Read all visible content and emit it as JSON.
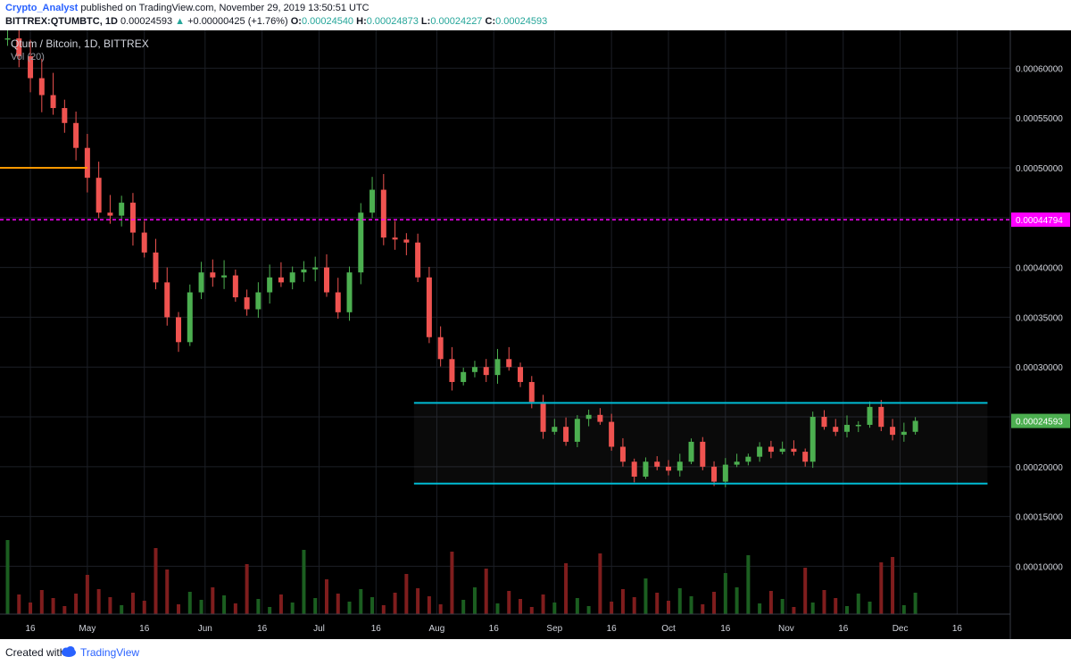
{
  "header": {
    "author": "Crypto_Analyst",
    "published_text": "published on TradingView.com, November 29, 2019 13:50:51 UTC",
    "symbol": "BITTREX:QTUMBTC, 1D",
    "last": "0.00024593",
    "arrow": "▲",
    "change": "+0.00000425 (+1.76%)",
    "o_label": "O:",
    "o_value": "0.00024540",
    "h_label": "H:",
    "h_value": "0.00024873",
    "l_label": "L:",
    "l_value": "0.00024227",
    "c_label": "C:",
    "c_value": "0.00024593"
  },
  "footer": {
    "created_with": "Created with",
    "brand": "TradingView",
    "logo_icon": "tradingview-logo-icon"
  },
  "colors": {
    "background": "#000000",
    "up": "#4caf50",
    "down": "#ef5350",
    "horizontal_line": "#ff9800",
    "dashed_line": "#ff00ff",
    "channel": "#00bcd4",
    "axis_text": "#d1d4dc",
    "price_badge": "#4caf50",
    "level_badge": "#ff00ff"
  },
  "chart_data": {
    "type": "candlestick",
    "title": "Qtum / Bitcoin, 1D, BITTREX",
    "indicator_label": "Vol (20)",
    "y_axis": {
      "ticks": [
        "0.00060000",
        "0.00055000",
        "0.00050000",
        "0.00045000",
        "0.00040000",
        "0.00035000",
        "0.00030000",
        "0.00025000",
        "0.00020000",
        "0.00015000",
        "0.00010000"
      ],
      "ylim": [
        5.2e-05,
        0.000638
      ]
    },
    "x_axis": {
      "ticks": [
        "16",
        "May",
        "16",
        "Jun",
        "16",
        "Jul",
        "16",
        "Aug",
        "16",
        "Sep",
        "16",
        "Oct",
        "16",
        "Nov",
        "16",
        "Dec",
        "16"
      ],
      "tick_dates": [
        "2019-04-16",
        "2019-05-01",
        "2019-05-16",
        "2019-06-01",
        "2019-06-16",
        "2019-07-01",
        "2019-07-16",
        "2019-08-01",
        "2019-08-16",
        "2019-09-01",
        "2019-09-16",
        "2019-10-01",
        "2019-10-16",
        "2019-11-01",
        "2019-11-16",
        "2019-12-01",
        "2019-12-16"
      ],
      "range": [
        "2019-04-08",
        "2019-12-30"
      ]
    },
    "price_labels": [
      {
        "value": "0.00044794",
        "kind": "level"
      },
      {
        "value": "0.00024593",
        "kind": "last"
      }
    ],
    "drawings": {
      "horizontal_segment": {
        "price": 0.0005,
        "from": "2019-04-08",
        "to": "2019-05-01"
      },
      "dashed_level": {
        "price": 0.00044794
      },
      "channel": {
        "upper": 0.000264,
        "lower": 0.000183,
        "from": "2019-07-26",
        "to": "2019-12-24"
      }
    },
    "candles": [
      {
        "date": "2019-04-10",
        "close": 0.00063
      },
      {
        "date": "2019-04-13",
        "close": 0.000612
      },
      {
        "date": "2019-04-16",
        "close": 0.00059
      },
      {
        "date": "2019-04-19",
        "close": 0.000573
      },
      {
        "date": "2019-04-22",
        "close": 0.00056
      },
      {
        "date": "2019-04-25",
        "close": 0.000545
      },
      {
        "date": "2019-04-28",
        "close": 0.00052
      },
      {
        "date": "2019-05-01",
        "close": 0.00049
      },
      {
        "date": "2019-05-04",
        "close": 0.000455
      },
      {
        "date": "2019-05-07",
        "close": 0.000452
      },
      {
        "date": "2019-05-10",
        "close": 0.000465
      },
      {
        "date": "2019-05-13",
        "close": 0.000435
      },
      {
        "date": "2019-05-16",
        "close": 0.000415
      },
      {
        "date": "2019-05-19",
        "close": 0.000385
      },
      {
        "date": "2019-05-22",
        "close": 0.00035
      },
      {
        "date": "2019-05-25",
        "close": 0.000325
      },
      {
        "date": "2019-05-28",
        "close": 0.000375
      },
      {
        "date": "2019-05-31",
        "close": 0.000395
      },
      {
        "date": "2019-06-03",
        "close": 0.00039
      },
      {
        "date": "2019-06-06",
        "close": 0.000392
      },
      {
        "date": "2019-06-09",
        "close": 0.00037
      },
      {
        "date": "2019-06-12",
        "close": 0.000358
      },
      {
        "date": "2019-06-15",
        "close": 0.000375
      },
      {
        "date": "2019-06-18",
        "close": 0.00039
      },
      {
        "date": "2019-06-21",
        "close": 0.000385
      },
      {
        "date": "2019-06-24",
        "close": 0.000395
      },
      {
        "date": "2019-06-27",
        "close": 0.000398
      },
      {
        "date": "2019-06-30",
        "close": 0.0004
      },
      {
        "date": "2019-07-03",
        "close": 0.000375
      },
      {
        "date": "2019-07-06",
        "close": 0.000355
      },
      {
        "date": "2019-07-09",
        "close": 0.000395
      },
      {
        "date": "2019-07-12",
        "close": 0.000455
      },
      {
        "date": "2019-07-15",
        "close": 0.000478
      },
      {
        "date": "2019-07-18",
        "close": 0.00043
      },
      {
        "date": "2019-07-21",
        "close": 0.000428
      },
      {
        "date": "2019-07-24",
        "close": 0.000425
      },
      {
        "date": "2019-07-27",
        "close": 0.00039
      },
      {
        "date": "2019-07-30",
        "close": 0.00033
      },
      {
        "date": "2019-08-02",
        "close": 0.000308
      },
      {
        "date": "2019-08-05",
        "close": 0.000285
      },
      {
        "date": "2019-08-08",
        "close": 0.000295
      },
      {
        "date": "2019-08-11",
        "close": 0.0003
      },
      {
        "date": "2019-08-14",
        "close": 0.000292
      },
      {
        "date": "2019-08-17",
        "close": 0.000308
      },
      {
        "date": "2019-08-20",
        "close": 0.0003
      },
      {
        "date": "2019-08-23",
        "close": 0.000285
      },
      {
        "date": "2019-08-26",
        "close": 0.000265
      },
      {
        "date": "2019-08-29",
        "close": 0.000235
      },
      {
        "date": "2019-09-01",
        "close": 0.00024
      },
      {
        "date": "2019-09-04",
        "close": 0.000225
      },
      {
        "date": "2019-09-07",
        "close": 0.000248
      },
      {
        "date": "2019-09-10",
        "close": 0.000252
      },
      {
        "date": "2019-09-13",
        "close": 0.000245
      },
      {
        "date": "2019-09-16",
        "close": 0.00022
      },
      {
        "date": "2019-09-19",
        "close": 0.000205
      },
      {
        "date": "2019-09-22",
        "close": 0.00019
      },
      {
        "date": "2019-09-25",
        "close": 0.000205
      },
      {
        "date": "2019-09-28",
        "close": 0.0002
      },
      {
        "date": "2019-10-01",
        "close": 0.000196
      },
      {
        "date": "2019-10-04",
        "close": 0.000205
      },
      {
        "date": "2019-10-07",
        "close": 0.000225
      },
      {
        "date": "2019-10-10",
        "close": 0.0002
      },
      {
        "date": "2019-10-13",
        "close": 0.000185
      },
      {
        "date": "2019-10-16",
        "close": 0.000202
      },
      {
        "date": "2019-10-19",
        "close": 0.000205
      },
      {
        "date": "2019-10-22",
        "close": 0.00021
      },
      {
        "date": "2019-10-25",
        "close": 0.00022
      },
      {
        "date": "2019-10-28",
        "close": 0.000215
      },
      {
        "date": "2019-10-31",
        "close": 0.000218
      },
      {
        "date": "2019-11-03",
        "close": 0.000215
      },
      {
        "date": "2019-11-06",
        "close": 0.000205
      },
      {
        "date": "2019-11-08",
        "close": 0.00025
      },
      {
        "date": "2019-11-11",
        "close": 0.00024
      },
      {
        "date": "2019-11-14",
        "close": 0.000235
      },
      {
        "date": "2019-11-17",
        "close": 0.000242
      },
      {
        "date": "2019-11-20",
        "close": 0.000242
      },
      {
        "date": "2019-11-23",
        "close": 0.00026
      },
      {
        "date": "2019-11-26",
        "close": 0.00024
      },
      {
        "date": "2019-11-29",
        "close": 0.000232
      },
      {
        "date": "2019-12-02",
        "close": 0.000235
      },
      {
        "date": "2019-12-05",
        "close": 0.000246
      }
    ]
  }
}
